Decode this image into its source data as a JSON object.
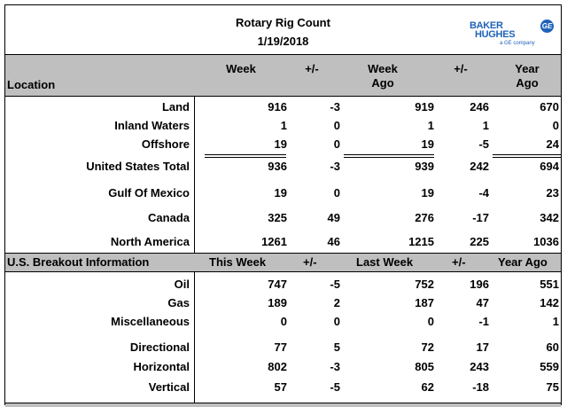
{
  "header": {
    "title": "Rotary Rig Count",
    "date": "1/19/2018",
    "logo_line1": "BAKER",
    "logo_line2": "HUGHES",
    "logo_sub": "a GE company",
    "logo_badge": "GE"
  },
  "columns1": {
    "location": "Location",
    "week": "Week",
    "change1": "+/-",
    "week_ago_1": "Week",
    "week_ago_2": "Ago",
    "change2": "+/-",
    "year_ago_1": "Year",
    "year_ago_2": "Ago"
  },
  "section1_rows": [
    {
      "label": "Land",
      "week": "916",
      "chg": "-3",
      "week_ago": "919",
      "chg2": "246",
      "year_ago": "670"
    },
    {
      "label": "Inland Waters",
      "week": "1",
      "chg": "0",
      "week_ago": "1",
      "chg2": "1",
      "year_ago": "0"
    },
    {
      "label": "Offshore",
      "week": "19",
      "chg": "0",
      "week_ago": "19",
      "chg2": "-5",
      "year_ago": "24"
    },
    {
      "label": "United States Total",
      "week": "936",
      "chg": "-3",
      "week_ago": "939",
      "chg2": "242",
      "year_ago": "694"
    },
    {
      "label": "Gulf Of Mexico",
      "week": "19",
      "chg": "0",
      "week_ago": "19",
      "chg2": "-4",
      "year_ago": "23"
    },
    {
      "label": "Canada",
      "week": "325",
      "chg": "49",
      "week_ago": "276",
      "chg2": "-17",
      "year_ago": "342"
    },
    {
      "label": "North America",
      "week": "1261",
      "chg": "46",
      "week_ago": "1215",
      "chg2": "225",
      "year_ago": "1036"
    }
  ],
  "columns2": {
    "label": "U.S. Breakout Information",
    "this_week": "This Week",
    "change1": "+/-",
    "last_week": "Last Week",
    "change2": "+/-",
    "year_ago": "Year Ago"
  },
  "section2_rows": [
    {
      "label": "Oil",
      "week": "747",
      "chg": "-5",
      "week_ago": "752",
      "chg2": "196",
      "year_ago": "551"
    },
    {
      "label": "Gas",
      "week": "189",
      "chg": "2",
      "week_ago": "187",
      "chg2": "47",
      "year_ago": "142"
    },
    {
      "label": "Miscellaneous",
      "week": "0",
      "chg": "0",
      "week_ago": "0",
      "chg2": "-1",
      "year_ago": "1"
    },
    {
      "label": "Directional",
      "week": "77",
      "chg": "5",
      "week_ago": "72",
      "chg2": "17",
      "year_ago": "60"
    },
    {
      "label": "Horizontal",
      "week": "802",
      "chg": "-3",
      "week_ago": "805",
      "chg2": "243",
      "year_ago": "559"
    },
    {
      "label": "Vertical",
      "week": "57",
      "chg": "-5",
      "week_ago": "62",
      "chg2": "-18",
      "year_ago": "75"
    }
  ]
}
